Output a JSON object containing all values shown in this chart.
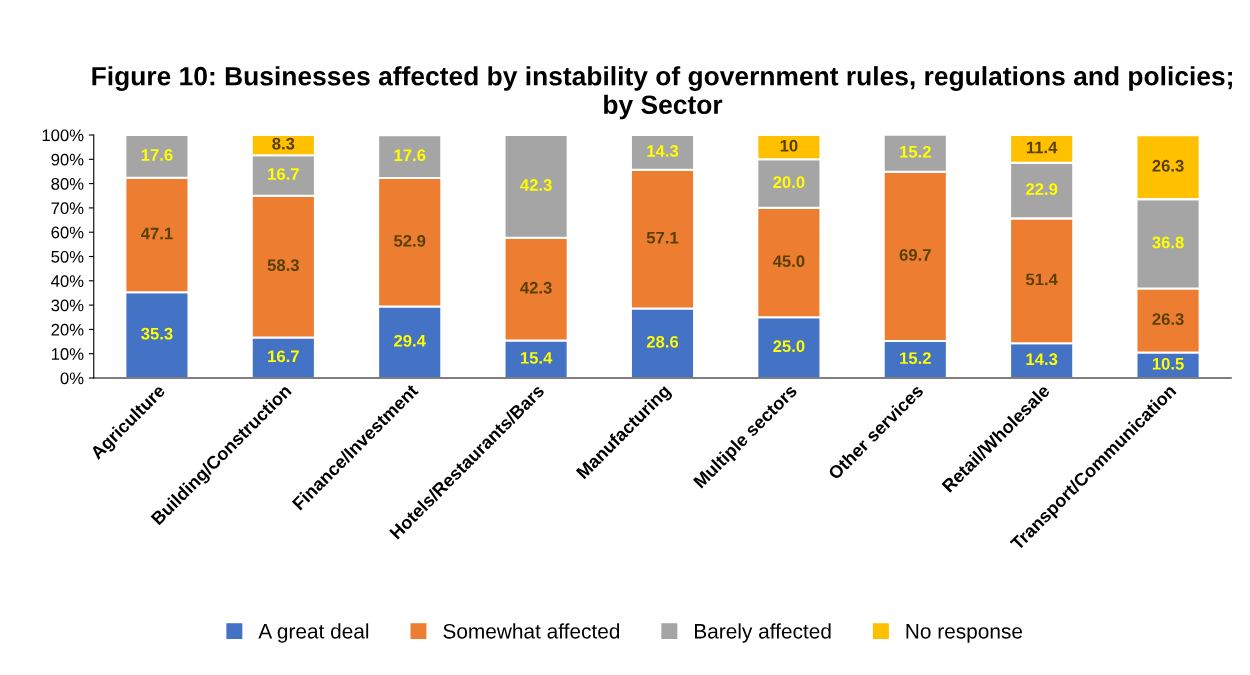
{
  "chart_data": {
    "type": "bar",
    "stacked": true,
    "title": "Figure 10: Businesses affected by instability of government rules, regulations and policies; by Sector",
    "categories": [
      "Agriculture",
      "Building/Construction",
      "Finance/Investment",
      "Hotels/Restaurants/Bars",
      "Manufacturing",
      "Multiple sectors",
      "Other services",
      "Retail/Wholesale",
      "Transport/Communication"
    ],
    "series": [
      {
        "name": "A great deal",
        "color": "#4472c4",
        "values": [
          35.3,
          16.7,
          29.4,
          15.4,
          28.6,
          25.0,
          15.2,
          14.3,
          10.5
        ],
        "value_labels": [
          "35.3",
          "16.7",
          "29.4",
          "15.4",
          "28.6",
          "25.0",
          "15.2",
          "14.3",
          "10.5"
        ]
      },
      {
        "name": "Somewhat affected",
        "color": "#ed7d31",
        "values": [
          47.1,
          58.3,
          52.9,
          42.3,
          57.1,
          45.0,
          69.7,
          51.4,
          26.3
        ],
        "value_labels": [
          "47.1",
          "58.3",
          "52.9",
          "42.3",
          "57.1",
          "45.0",
          "69.7",
          "51.4",
          "26.3"
        ]
      },
      {
        "name": "Barely affected",
        "color": "#a5a5a5",
        "values": [
          17.6,
          16.7,
          17.6,
          42.3,
          14.3,
          20.0,
          15.2,
          22.9,
          36.8
        ],
        "value_labels": [
          "17.6",
          "16.7",
          "17.6",
          "42.3",
          "14.3",
          "20.0",
          "15.2",
          "22.9",
          "36.8"
        ]
      },
      {
        "name": "No response",
        "color": "#ffc000",
        "values": [
          null,
          8.3,
          null,
          null,
          null,
          10,
          null,
          11.4,
          26.3
        ],
        "value_labels": [
          null,
          "8.3",
          null,
          null,
          null,
          "10",
          null,
          "11.4",
          "26.3"
        ]
      }
    ],
    "ylim": [
      0,
      100
    ],
    "yticks": [
      {
        "value": 0,
        "label": "0%"
      },
      {
        "value": 10,
        "label": "10%"
      },
      {
        "value": 20,
        "label": "20%"
      },
      {
        "value": 30,
        "label": "30%"
      },
      {
        "value": 40,
        "label": "40%"
      },
      {
        "value": 50,
        "label": "50%"
      },
      {
        "value": 60,
        "label": "60%"
      },
      {
        "value": 70,
        "label": "70%"
      },
      {
        "value": 80,
        "label": "80%"
      },
      {
        "value": 90,
        "label": "90%"
      },
      {
        "value": 100,
        "label": "100%"
      }
    ],
    "grid": false,
    "legend": "bottom"
  }
}
